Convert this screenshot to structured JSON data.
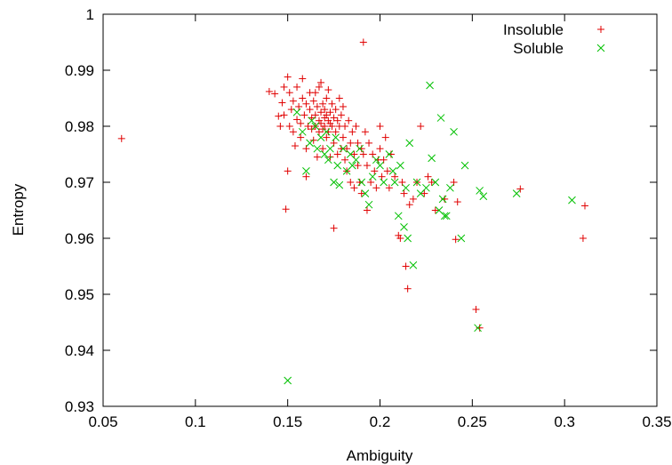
{
  "chart_data": {
    "type": "scatter",
    "xlabel": "Ambiguity",
    "ylabel": "Entropy",
    "xlim": [
      0.05,
      0.35
    ],
    "ylim": [
      0.93,
      1.0
    ],
    "xticks": [
      "0.05",
      "0.1",
      "0.15",
      "0.2",
      "0.25",
      "0.3",
      "0.35"
    ],
    "xtick_values": [
      0.05,
      0.1,
      0.15,
      0.2,
      0.25,
      0.3,
      0.35
    ],
    "yticks": [
      "0.93",
      "0.94",
      "0.95",
      "0.96",
      "0.97",
      "0.98",
      "0.99",
      "1"
    ],
    "ytick_values": [
      0.93,
      0.94,
      0.95,
      0.96,
      0.97,
      0.98,
      0.99,
      1.0
    ],
    "grid": false,
    "legend_position": "top-right",
    "series": [
      {
        "name": "Insoluble",
        "marker": "plus",
        "color": "#e00000",
        "points": [
          [
            0.06,
            0.9778
          ],
          [
            0.14,
            0.9862
          ],
          [
            0.143,
            0.9858
          ],
          [
            0.145,
            0.9818
          ],
          [
            0.146,
            0.98
          ],
          [
            0.147,
            0.9842
          ],
          [
            0.148,
            0.982
          ],
          [
            0.148,
            0.987
          ],
          [
            0.149,
            0.9652
          ],
          [
            0.15,
            0.9888
          ],
          [
            0.15,
            0.972
          ],
          [
            0.151,
            0.986
          ],
          [
            0.151,
            0.98
          ],
          [
            0.152,
            0.983
          ],
          [
            0.153,
            0.979
          ],
          [
            0.153,
            0.9845
          ],
          [
            0.154,
            0.9765
          ],
          [
            0.155,
            0.9812
          ],
          [
            0.155,
            0.987
          ],
          [
            0.156,
            0.9835
          ],
          [
            0.157,
            0.9805
          ],
          [
            0.157,
            0.978
          ],
          [
            0.158,
            0.9885
          ],
          [
            0.158,
            0.985
          ],
          [
            0.159,
            0.982
          ],
          [
            0.16,
            0.976
          ],
          [
            0.16,
            0.984
          ],
          [
            0.16,
            0.971
          ],
          [
            0.161,
            0.98
          ],
          [
            0.162,
            0.986
          ],
          [
            0.162,
            0.983
          ],
          [
            0.163,
            0.9795
          ],
          [
            0.163,
            0.9815
          ],
          [
            0.164,
            0.9845
          ],
          [
            0.164,
            0.9775
          ],
          [
            0.165,
            0.982
          ],
          [
            0.165,
            0.986
          ],
          [
            0.165,
            0.98
          ],
          [
            0.166,
            0.9835
          ],
          [
            0.166,
            0.9745
          ],
          [
            0.167,
            0.981
          ],
          [
            0.167,
            0.979
          ],
          [
            0.167,
            0.987
          ],
          [
            0.168,
            0.9825
          ],
          [
            0.168,
            0.9805
          ],
          [
            0.168,
            0.9878
          ],
          [
            0.169,
            0.984
          ],
          [
            0.169,
            0.9795
          ],
          [
            0.169,
            0.976
          ],
          [
            0.17,
            0.9815
          ],
          [
            0.17,
            0.983
          ],
          [
            0.17,
            0.98
          ],
          [
            0.171,
            0.982
          ],
          [
            0.171,
            0.985
          ],
          [
            0.171,
            0.978
          ],
          [
            0.172,
            0.981
          ],
          [
            0.172,
            0.979
          ],
          [
            0.172,
            0.9865
          ],
          [
            0.173,
            0.9825
          ],
          [
            0.173,
            0.9805
          ],
          [
            0.173,
            0.9745
          ],
          [
            0.174,
            0.984
          ],
          [
            0.174,
            0.98
          ],
          [
            0.175,
            0.9815
          ],
          [
            0.175,
            0.9618
          ],
          [
            0.175,
            0.977
          ],
          [
            0.176,
            0.983
          ],
          [
            0.176,
            0.979
          ],
          [
            0.177,
            0.981
          ],
          [
            0.177,
            0.975
          ],
          [
            0.178,
            0.985
          ],
          [
            0.178,
            0.98
          ],
          [
            0.179,
            0.982
          ],
          [
            0.179,
            0.976
          ],
          [
            0.18,
            0.978
          ],
          [
            0.18,
            0.9835
          ],
          [
            0.181,
            0.974
          ],
          [
            0.181,
            0.98
          ],
          [
            0.182,
            0.976
          ],
          [
            0.182,
            0.972
          ],
          [
            0.183,
            0.981
          ],
          [
            0.184,
            0.977
          ],
          [
            0.184,
            0.97
          ],
          [
            0.185,
            0.979
          ],
          [
            0.186,
            0.975
          ],
          [
            0.186,
            0.969
          ],
          [
            0.187,
            0.98
          ],
          [
            0.188,
            0.973
          ],
          [
            0.188,
            0.977
          ],
          [
            0.189,
            0.97
          ],
          [
            0.19,
            0.976
          ],
          [
            0.19,
            0.968
          ],
          [
            0.191,
            0.975
          ],
          [
            0.191,
            0.995
          ],
          [
            0.192,
            0.979
          ],
          [
            0.193,
            0.973
          ],
          [
            0.193,
            0.965
          ],
          [
            0.194,
            0.977
          ],
          [
            0.195,
            0.97
          ],
          [
            0.196,
            0.975
          ],
          [
            0.197,
            0.972
          ],
          [
            0.198,
            0.969
          ],
          [
            0.199,
            0.974
          ],
          [
            0.2,
            0.98
          ],
          [
            0.2,
            0.976
          ],
          [
            0.201,
            0.971
          ],
          [
            0.202,
            0.974
          ],
          [
            0.203,
            0.978
          ],
          [
            0.204,
            0.972
          ],
          [
            0.205,
            0.969
          ],
          [
            0.206,
            0.975
          ],
          [
            0.208,
            0.971
          ],
          [
            0.21,
            0.9605
          ],
          [
            0.211,
            0.96
          ],
          [
            0.212,
            0.97
          ],
          [
            0.213,
            0.968
          ],
          [
            0.214,
            0.955
          ],
          [
            0.215,
            0.951
          ],
          [
            0.216,
            0.966
          ],
          [
            0.218,
            0.967
          ],
          [
            0.22,
            0.97
          ],
          [
            0.222,
            0.98
          ],
          [
            0.224,
            0.968
          ],
          [
            0.226,
            0.971
          ],
          [
            0.228,
            0.97
          ],
          [
            0.23,
            0.965
          ],
          [
            0.235,
            0.967
          ],
          [
            0.24,
            0.97
          ],
          [
            0.242,
            0.9665
          ],
          [
            0.241,
            0.9598
          ],
          [
            0.252,
            0.9473
          ],
          [
            0.254,
            0.944
          ],
          [
            0.276,
            0.9688
          ],
          [
            0.31,
            0.96
          ],
          [
            0.311,
            0.9658
          ]
        ]
      },
      {
        "name": "Soluble",
        "marker": "cross",
        "color": "#00c000",
        "points": [
          [
            0.15,
            0.9346
          ],
          [
            0.155,
            0.9825
          ],
          [
            0.158,
            0.979
          ],
          [
            0.16,
            0.972
          ],
          [
            0.162,
            0.977
          ],
          [
            0.163,
            0.981
          ],
          [
            0.165,
            0.98
          ],
          [
            0.166,
            0.976
          ],
          [
            0.168,
            0.978
          ],
          [
            0.17,
            0.975
          ],
          [
            0.171,
            0.979
          ],
          [
            0.172,
            0.974
          ],
          [
            0.173,
            0.976
          ],
          [
            0.175,
            0.97
          ],
          [
            0.176,
            0.978
          ],
          [
            0.177,
            0.973
          ],
          [
            0.178,
            0.9695
          ],
          [
            0.18,
            0.976
          ],
          [
            0.182,
            0.972
          ],
          [
            0.184,
            0.975
          ],
          [
            0.185,
            0.973
          ],
          [
            0.187,
            0.974
          ],
          [
            0.189,
            0.976
          ],
          [
            0.19,
            0.97
          ],
          [
            0.192,
            0.968
          ],
          [
            0.194,
            0.966
          ],
          [
            0.196,
            0.971
          ],
          [
            0.198,
            0.974
          ],
          [
            0.2,
            0.973
          ],
          [
            0.202,
            0.97
          ],
          [
            0.205,
            0.975
          ],
          [
            0.207,
            0.972
          ],
          [
            0.208,
            0.97
          ],
          [
            0.21,
            0.964
          ],
          [
            0.211,
            0.973
          ],
          [
            0.213,
            0.962
          ],
          [
            0.214,
            0.969
          ],
          [
            0.215,
            0.96
          ],
          [
            0.216,
            0.977
          ],
          [
            0.218,
            0.9552
          ],
          [
            0.22,
            0.97
          ],
          [
            0.222,
            0.968
          ],
          [
            0.225,
            0.969
          ],
          [
            0.227,
            0.9873
          ],
          [
            0.228,
            0.9743
          ],
          [
            0.23,
            0.97
          ],
          [
            0.232,
            0.965
          ],
          [
            0.233,
            0.9815
          ],
          [
            0.234,
            0.967
          ],
          [
            0.235,
            0.964
          ],
          [
            0.236,
            0.964
          ],
          [
            0.238,
            0.969
          ],
          [
            0.24,
            0.979
          ],
          [
            0.244,
            0.96
          ],
          [
            0.246,
            0.973
          ],
          [
            0.254,
            0.9685
          ],
          [
            0.256,
            0.9675
          ],
          [
            0.274,
            0.968
          ],
          [
            0.304,
            0.9668
          ],
          [
            0.253,
            0.944
          ]
        ]
      }
    ]
  }
}
